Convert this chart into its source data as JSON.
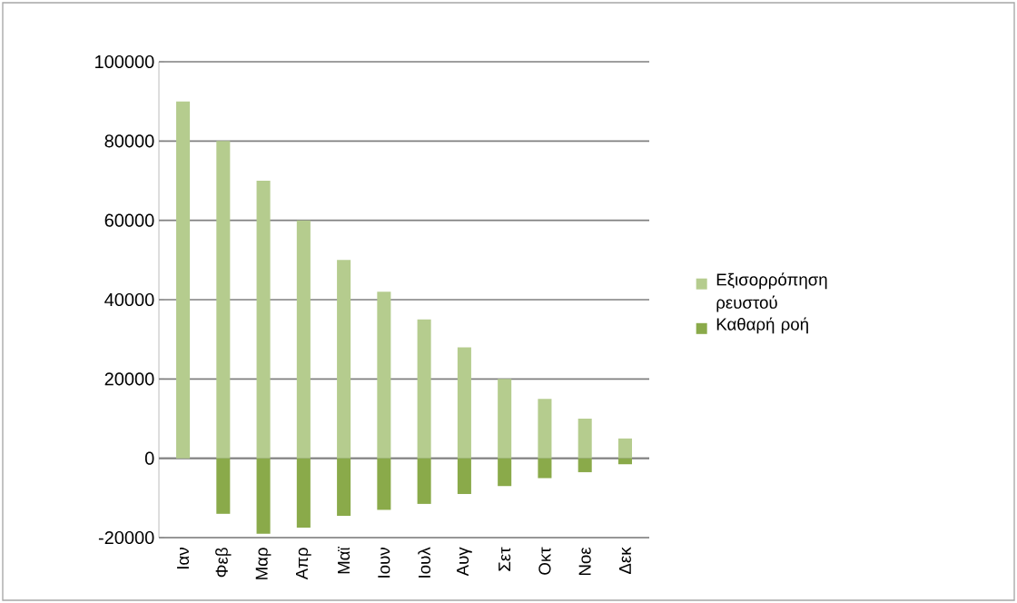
{
  "chart_data": {
    "type": "bar",
    "categories": [
      "Ιαν",
      "Φεβ",
      "Μαρ",
      "Απρ",
      "Μαϊ",
      "Ιουν",
      "Ιουλ",
      "Αυγ",
      "Σετ",
      "Οκτ",
      "Νοε",
      "Δεκ"
    ],
    "series": [
      {
        "name": "Εξισορρόπηση ρευστού",
        "color": "#b5cc8e",
        "values": [
          90000,
          80000,
          70000,
          60000,
          50000,
          42000,
          35000,
          28000,
          20000,
          15000,
          10000,
          5000
        ]
      },
      {
        "name": "Καθαρή ροή",
        "color": "#8aaa4a",
        "values": [
          0,
          -14000,
          -19000,
          -17500,
          -14500,
          -13000,
          -11500,
          -9000,
          -7000,
          -5000,
          -3500,
          -1500
        ]
      }
    ],
    "ylim": [
      -20000,
      100000
    ],
    "yticks": [
      -20000,
      0,
      20000,
      40000,
      60000,
      80000,
      100000
    ],
    "stacked": true,
    "grid": "y",
    "legend": "right"
  }
}
